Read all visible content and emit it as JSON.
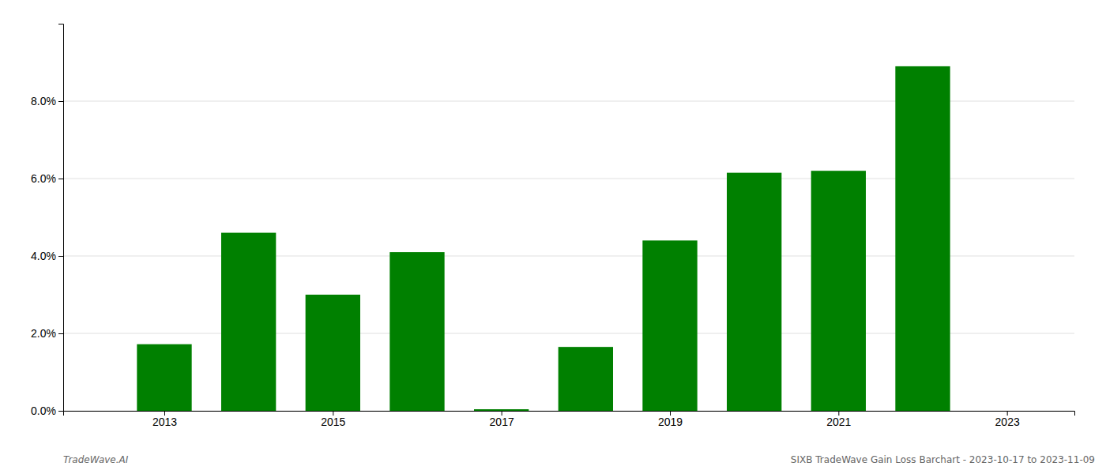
{
  "chart_data": {
    "type": "bar",
    "x": [
      2013,
      2014,
      2015,
      2016,
      2017,
      2018,
      2019,
      2020,
      2021,
      2022
    ],
    "values": [
      0.0172,
      0.046,
      0.03,
      0.041,
      0.0004,
      0.0165,
      0.044,
      0.0615,
      0.062,
      0.089
    ],
    "color": "#008000",
    "xlim": [
      2011.8,
      2023.8
    ],
    "xticks": [
      2013,
      2015,
      2017,
      2019,
      2021,
      2023
    ],
    "ylim": [
      0,
      0.1
    ],
    "yticks": [
      {
        "value": 0.0,
        "label": "0.0%"
      },
      {
        "value": 0.02,
        "label": "2.0%"
      },
      {
        "value": 0.04,
        "label": "4.0%"
      },
      {
        "value": 0.06,
        "label": "6.0%"
      },
      {
        "value": 0.08,
        "label": "8.0%"
      }
    ],
    "grid": true,
    "annotations": [
      "TradeWave.AI",
      "SIXB TradeWave Gain Loss Barchart - 2023-10-17 to 2023-11-09"
    ]
  }
}
